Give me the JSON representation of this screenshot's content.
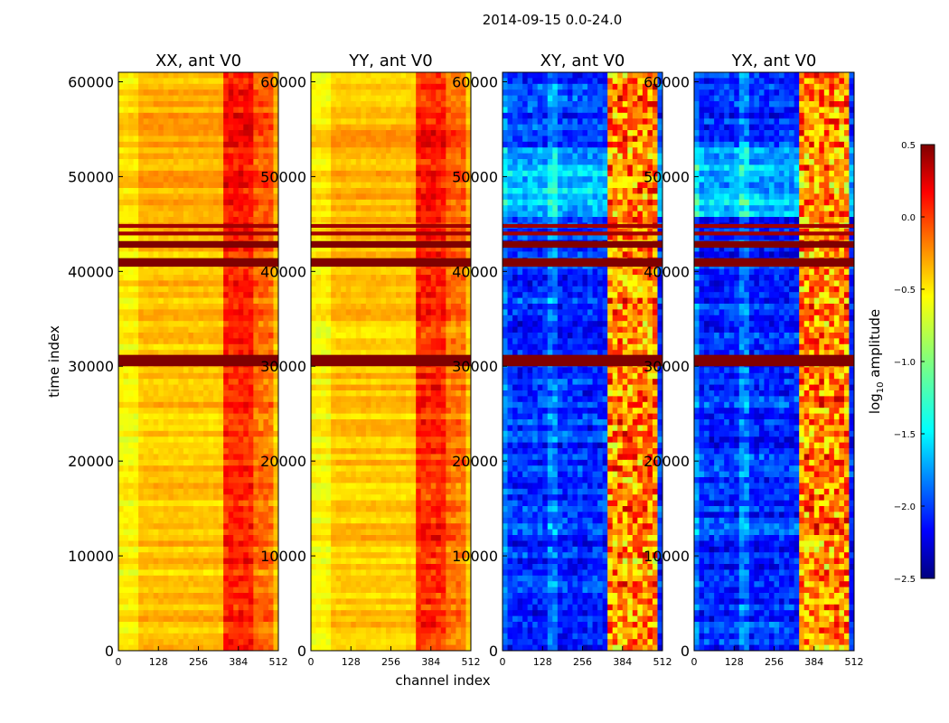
{
  "figure": {
    "suptitle": "2014-09-15 0.0-24.0",
    "xlabel": "channel index",
    "ylabel": "time index"
  },
  "chart_data": {
    "type": "heatmap",
    "colormap": "jet",
    "x_ticks": [
      "0",
      "128",
      "256",
      "384",
      "512"
    ],
    "x_tick_values": [
      0,
      128,
      256,
      384,
      512
    ],
    "xlim": [
      0,
      512
    ],
    "y_ticks": [
      "0",
      "10000",
      "20000",
      "30000",
      "40000",
      "50000",
      "60000"
    ],
    "y_tick_values": [
      0,
      10000,
      20000,
      30000,
      40000,
      50000,
      60000
    ],
    "ylim": [
      0,
      61000
    ],
    "colorbar": {
      "label": "log10 amplitude",
      "label_base": "log",
      "label_sub": "10",
      "label_rest": " amplitude",
      "range": [
        -2.5,
        0.5
      ],
      "ticks": [
        "0.5",
        "0.0",
        "−0.5",
        "−1.0",
        "−1.5",
        "−2.0",
        "−2.5"
      ],
      "tick_values": [
        0.5,
        0.0,
        -0.5,
        -1.0,
        -1.5,
        -2.0,
        -2.5
      ]
    },
    "panels": [
      {
        "title": "XX, ant V0",
        "kind": "auto",
        "base_value": -0.45
      },
      {
        "title": "YY, ant V0",
        "kind": "auto",
        "base_value": -0.45
      },
      {
        "title": "XY, ant V0",
        "kind": "cross",
        "base_value": -2.0
      },
      {
        "title": "YX, ant V0",
        "kind": "cross",
        "base_value": -2.0
      }
    ],
    "flagged_time_bands": [
      {
        "start": 40500,
        "end": 41400,
        "value": 0.5
      },
      {
        "start": 42500,
        "end": 43200,
        "value": 0.5
      },
      {
        "start": 43800,
        "end": 44200,
        "value": 0.4
      },
      {
        "start": 44600,
        "end": 45000,
        "value": 0.4
      },
      {
        "start": 30000,
        "end": 31200,
        "value": 0.5
      }
    ],
    "bright_channel_range": [
      330,
      500
    ]
  }
}
